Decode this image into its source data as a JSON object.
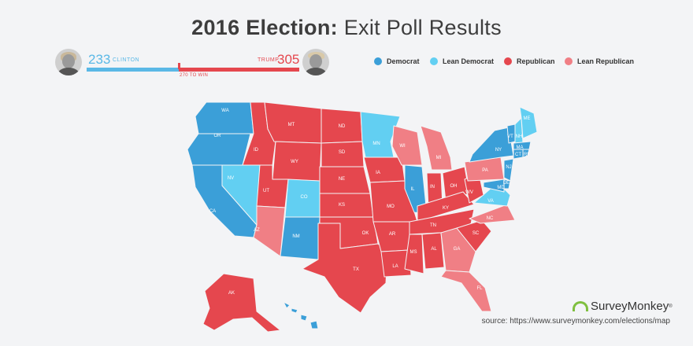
{
  "title": {
    "bold": "2016 Election:",
    "rest": " Exit Poll Results"
  },
  "electoral": {
    "clinton": {
      "votes": "233",
      "label": "CLINTON"
    },
    "trump": {
      "votes": "305",
      "label": "TRUMP"
    },
    "to_win": "270 TO WIN",
    "total": 538,
    "clinton_share": 233,
    "trump_share": 305
  },
  "legend": [
    {
      "label": "Democrat",
      "color": "#3b9fd8"
    },
    {
      "label": "Lean Democrat",
      "color": "#62cff2"
    },
    {
      "label": "Republican",
      "color": "#e5474e"
    },
    {
      "label": "Lean Republican",
      "color": "#f07f85"
    }
  ],
  "colors": {
    "D": "#3b9fd8",
    "LD": "#62cff2",
    "R": "#e5474e",
    "LR": "#f07f85"
  },
  "states": [
    {
      "abbr": "WA",
      "cat": "D"
    },
    {
      "abbr": "OR",
      "cat": "D"
    },
    {
      "abbr": "CA",
      "cat": "D"
    },
    {
      "abbr": "NV",
      "cat": "LD"
    },
    {
      "abbr": "ID",
      "cat": "R"
    },
    {
      "abbr": "MT",
      "cat": "R"
    },
    {
      "abbr": "WY",
      "cat": "R"
    },
    {
      "abbr": "UT",
      "cat": "R"
    },
    {
      "abbr": "AZ",
      "cat": "LR"
    },
    {
      "abbr": "CO",
      "cat": "LD"
    },
    {
      "abbr": "NM",
      "cat": "D"
    },
    {
      "abbr": "ND",
      "cat": "R"
    },
    {
      "abbr": "SD",
      "cat": "R"
    },
    {
      "abbr": "NE",
      "cat": "R"
    },
    {
      "abbr": "KS",
      "cat": "R"
    },
    {
      "abbr": "OK",
      "cat": "R"
    },
    {
      "abbr": "TX",
      "cat": "R"
    },
    {
      "abbr": "MN",
      "cat": "LD"
    },
    {
      "abbr": "IA",
      "cat": "R"
    },
    {
      "abbr": "MO",
      "cat": "R"
    },
    {
      "abbr": "AR",
      "cat": "R"
    },
    {
      "abbr": "LA",
      "cat": "R"
    },
    {
      "abbr": "WI",
      "cat": "LR"
    },
    {
      "abbr": "IL",
      "cat": "D"
    },
    {
      "abbr": "MI",
      "cat": "LR"
    },
    {
      "abbr": "IN",
      "cat": "R"
    },
    {
      "abbr": "OH",
      "cat": "R"
    },
    {
      "abbr": "KY",
      "cat": "R"
    },
    {
      "abbr": "TN",
      "cat": "R"
    },
    {
      "abbr": "MS",
      "cat": "R"
    },
    {
      "abbr": "AL",
      "cat": "R"
    },
    {
      "abbr": "GA",
      "cat": "LR"
    },
    {
      "abbr": "FL",
      "cat": "LR"
    },
    {
      "abbr": "SC",
      "cat": "R"
    },
    {
      "abbr": "NC",
      "cat": "LR"
    },
    {
      "abbr": "VA",
      "cat": "LD"
    },
    {
      "abbr": "WV",
      "cat": "R"
    },
    {
      "abbr": "PA",
      "cat": "LR"
    },
    {
      "abbr": "NY",
      "cat": "D"
    },
    {
      "abbr": "VT",
      "cat": "D"
    },
    {
      "abbr": "NH",
      "cat": "LD"
    },
    {
      "abbr": "ME",
      "cat": "LD"
    },
    {
      "abbr": "MA",
      "cat": "D"
    },
    {
      "abbr": "CT",
      "cat": "D"
    },
    {
      "abbr": "RI",
      "cat": "D"
    },
    {
      "abbr": "NJ",
      "cat": "D"
    },
    {
      "abbr": "DE",
      "cat": "D"
    },
    {
      "abbr": "MD",
      "cat": "D"
    },
    {
      "abbr": "AK",
      "cat": "R"
    },
    {
      "abbr": "HI",
      "cat": "D"
    }
  ],
  "brand": {
    "name": "SurveyMonkey",
    "mark": "®"
  },
  "source": "source: https://www.surveymonkey.com/elections/map"
}
